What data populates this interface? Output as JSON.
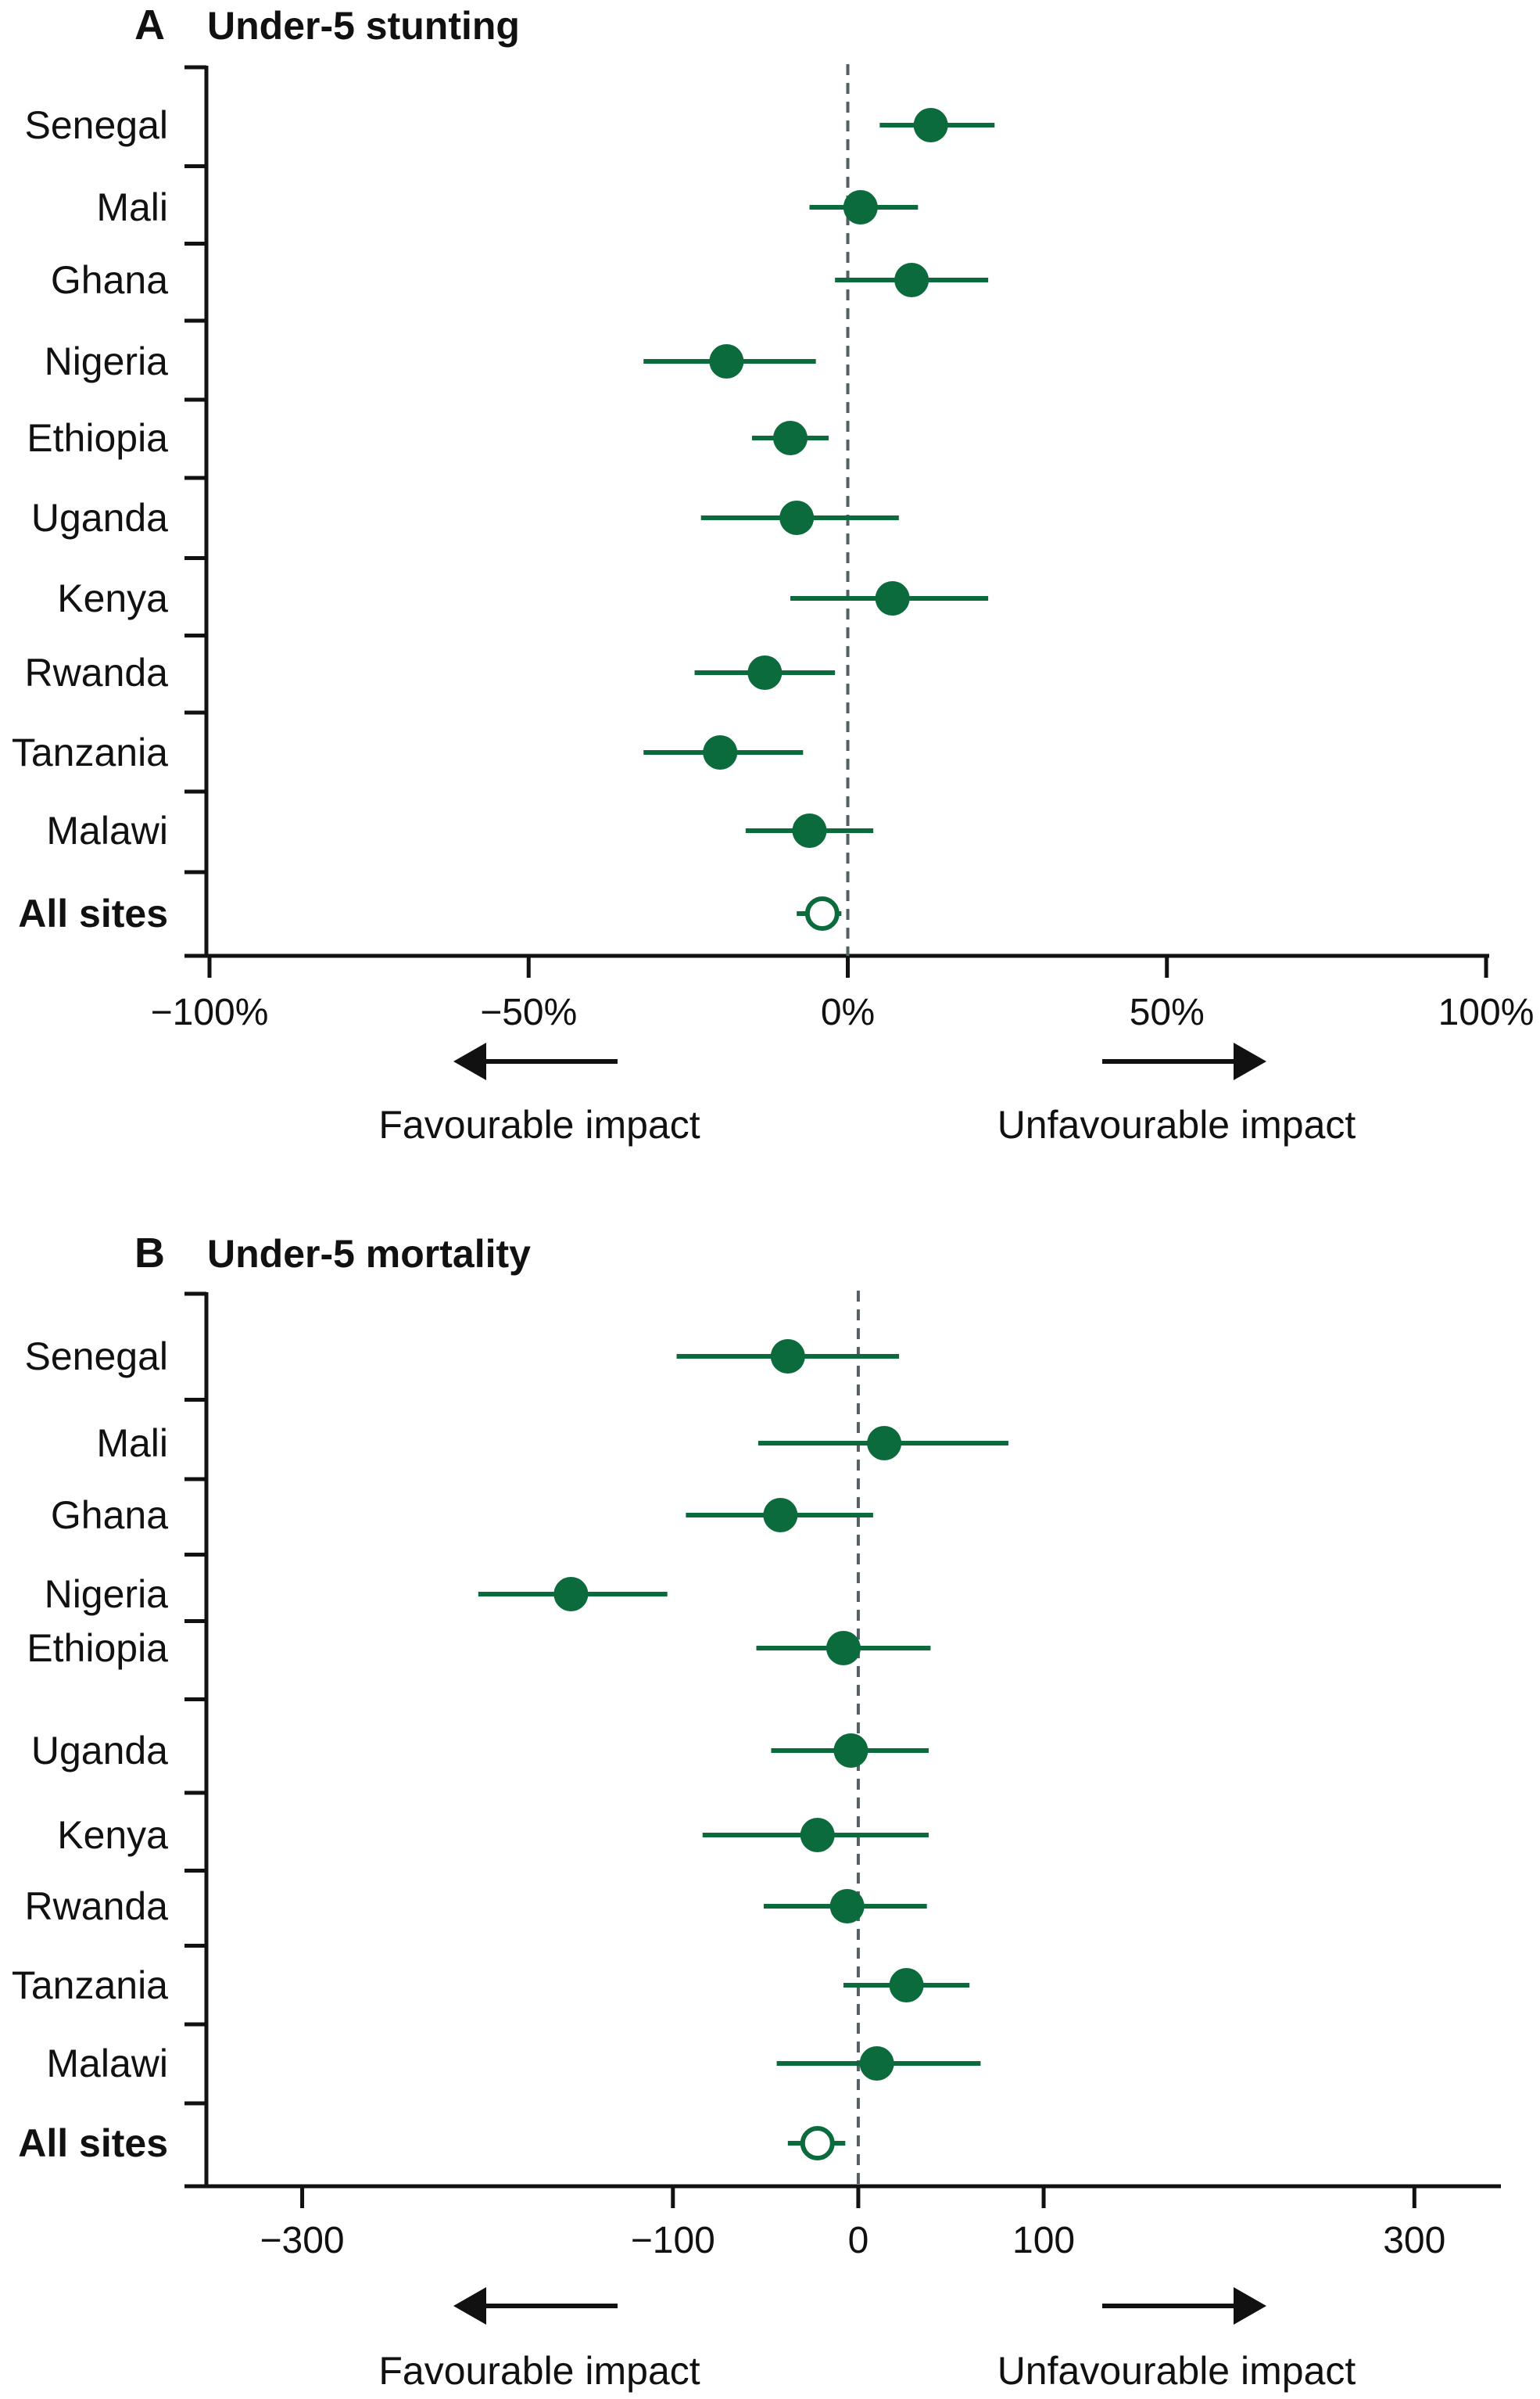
{
  "chart_data": [
    {
      "type": "scatter",
      "panel": "A",
      "title": "Under-5 stunting",
      "categories": [
        "Senegal",
        "Mali",
        "Ghana",
        "Nigeria",
        "Ethiopia",
        "Uganda",
        "Kenya",
        "Rwanda",
        "Tanzania",
        "Malawi",
        "All sites"
      ],
      "bold_categories": [
        "All sites"
      ],
      "estimates": [
        13,
        2,
        10,
        -19,
        -9,
        -8,
        7,
        -13,
        -20,
        -6,
        -4
      ],
      "lower": [
        5,
        -6,
        -2,
        -32,
        -15,
        -23,
        -9,
        -24,
        -32,
        -16,
        -8
      ],
      "upper": [
        23,
        11,
        22,
        -5,
        -3,
        8,
        22,
        -2,
        -7,
        4,
        -1
      ],
      "open_points": [
        "All sites"
      ],
      "xlim": [
        -100,
        100
      ],
      "xticks": [
        -100,
        -50,
        0,
        50,
        100
      ],
      "xtick_labels": [
        "−100%",
        "−50%",
        "0%",
        "50%",
        "100%"
      ],
      "reference_line": 0,
      "left_direction_label": "Favourable impact",
      "right_direction_label": "Unfavourable impact"
    },
    {
      "type": "scatter",
      "panel": "B",
      "title": "Under-5 mortality",
      "categories": [
        "Senegal",
        "Mali",
        "Ghana",
        "Nigeria",
        "Ethiopia",
        "Uganda",
        "Kenya",
        "Rwanda",
        "Tanzania",
        "Malawi",
        "All sites"
      ],
      "bold_categories": [
        "All sites"
      ],
      "estimates": [
        -38,
        14,
        -42,
        -155,
        -8,
        -4,
        -22,
        -6,
        26,
        10,
        -22
      ],
      "lower": [
        -98,
        -54,
        -93,
        -205,
        -55,
        -47,
        -84,
        -51,
        -8,
        -44,
        -38
      ],
      "upper": [
        22,
        81,
        8,
        -103,
        39,
        38,
        38,
        37,
        60,
        66,
        -7
      ],
      "open_points": [
        "All sites"
      ],
      "xlim": [
        -350,
        345
      ],
      "xticks": [
        -300,
        -100,
        0,
        100,
        300
      ],
      "xtick_labels": [
        "−300",
        "−100",
        "0",
        "100",
        "300"
      ],
      "reference_line": 0,
      "left_direction_label": "Favourable impact",
      "right_direction_label": "Unfavourable impact"
    }
  ],
  "colors": {
    "point": "#0c6b3c",
    "reference_line": "#555f66",
    "axis": "#111111"
  }
}
